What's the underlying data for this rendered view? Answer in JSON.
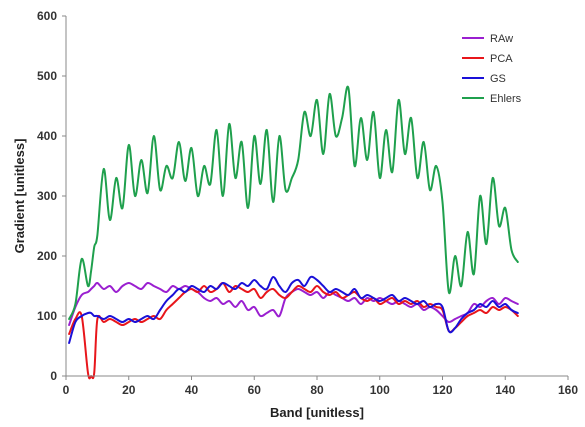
{
  "chart_data": {
    "type": "line",
    "xlabel": "Band [unitless]",
    "ylabel": "Gradient [unitless]",
    "xlim": [
      0,
      160
    ],
    "ylim": [
      0,
      600
    ],
    "xticks": [
      0,
      20,
      40,
      60,
      80,
      100,
      120,
      140,
      160
    ],
    "yticks": [
      0,
      100,
      200,
      300,
      400,
      500,
      600
    ],
    "grid": false,
    "legend_position": "top-right",
    "x": [
      1,
      3,
      5,
      7,
      8,
      9,
      10,
      12,
      14,
      16,
      18,
      20,
      22,
      24,
      26,
      28,
      30,
      32,
      34,
      36,
      38,
      40,
      42,
      44,
      46,
      48,
      50,
      52,
      54,
      56,
      58,
      60,
      62,
      64,
      66,
      68,
      70,
      72,
      74,
      76,
      78,
      80,
      82,
      84,
      86,
      88,
      90,
      92,
      94,
      96,
      98,
      100,
      102,
      104,
      106,
      108,
      110,
      112,
      114,
      116,
      118,
      120,
      122,
      124,
      126,
      128,
      130,
      132,
      134,
      136,
      138,
      140,
      142,
      144
    ],
    "series": [
      {
        "name": "RAw",
        "color": "#9a1fd0",
        "values": [
          85,
          115,
          135,
          140,
          145,
          150,
          155,
          145,
          150,
          140,
          150,
          155,
          150,
          145,
          155,
          150,
          145,
          140,
          150,
          145,
          150,
          145,
          140,
          130,
          125,
          130,
          120,
          125,
          115,
          125,
          110,
          115,
          100,
          105,
          110,
          100,
          130,
          140,
          145,
          140,
          135,
          140,
          130,
          140,
          135,
          130,
          125,
          130,
          120,
          130,
          125,
          130,
          125,
          120,
          125,
          120,
          115,
          120,
          110,
          115,
          110,
          100,
          90,
          95,
          100,
          105,
          120,
          115,
          125,
          130,
          120,
          130,
          125,
          120
        ]
      },
      {
        "name": "PCA",
        "color": "#e8161b",
        "values": [
          70,
          95,
          100,
          5,
          0,
          5,
          95,
          90,
          95,
          90,
          85,
          90,
          95,
          90,
          95,
          100,
          95,
          110,
          120,
          130,
          140,
          145,
          140,
          150,
          140,
          145,
          155,
          140,
          150,
          145,
          140,
          145,
          130,
          140,
          145,
          135,
          130,
          140,
          150,
          145,
          140,
          150,
          140,
          135,
          140,
          130,
          135,
          140,
          130,
          125,
          130,
          120,
          125,
          130,
          120,
          125,
          120,
          125,
          115,
          120,
          115,
          110,
          75,
          80,
          90,
          100,
          105,
          110,
          105,
          115,
          110,
          115,
          110,
          100
        ]
      },
      {
        "name": "GS",
        "color": "#1a10d8",
        "values": [
          55,
          90,
          100,
          105,
          105,
          100,
          100,
          95,
          100,
          95,
          90,
          95,
          90,
          95,
          100,
          95,
          110,
          125,
          135,
          145,
          140,
          150,
          145,
          140,
          150,
          145,
          155,
          150,
          145,
          155,
          150,
          160,
          150,
          145,
          165,
          150,
          140,
          155,
          160,
          150,
          165,
          160,
          150,
          140,
          145,
          140,
          135,
          145,
          130,
          135,
          130,
          125,
          130,
          135,
          125,
          130,
          125,
          120,
          125,
          115,
          120,
          115,
          75,
          80,
          95,
          105,
          110,
          120,
          115,
          125,
          115,
          120,
          110,
          105
        ]
      },
      {
        "name": "Ehlers",
        "color": "#1fa04d",
        "values": [
          95,
          120,
          195,
          150,
          175,
          215,
          235,
          345,
          260,
          330,
          280,
          385,
          300,
          360,
          305,
          400,
          310,
          350,
          330,
          390,
          325,
          380,
          300,
          350,
          320,
          410,
          300,
          420,
          330,
          390,
          280,
          400,
          320,
          410,
          290,
          400,
          310,
          330,
          360,
          440,
          400,
          460,
          370,
          470,
          400,
          430,
          480,
          350,
          430,
          360,
          440,
          330,
          410,
          340,
          460,
          370,
          430,
          330,
          390,
          310,
          350,
          290,
          140,
          200,
          150,
          240,
          170,
          300,
          220,
          330,
          250,
          280,
          210,
          190
        ]
      }
    ]
  }
}
